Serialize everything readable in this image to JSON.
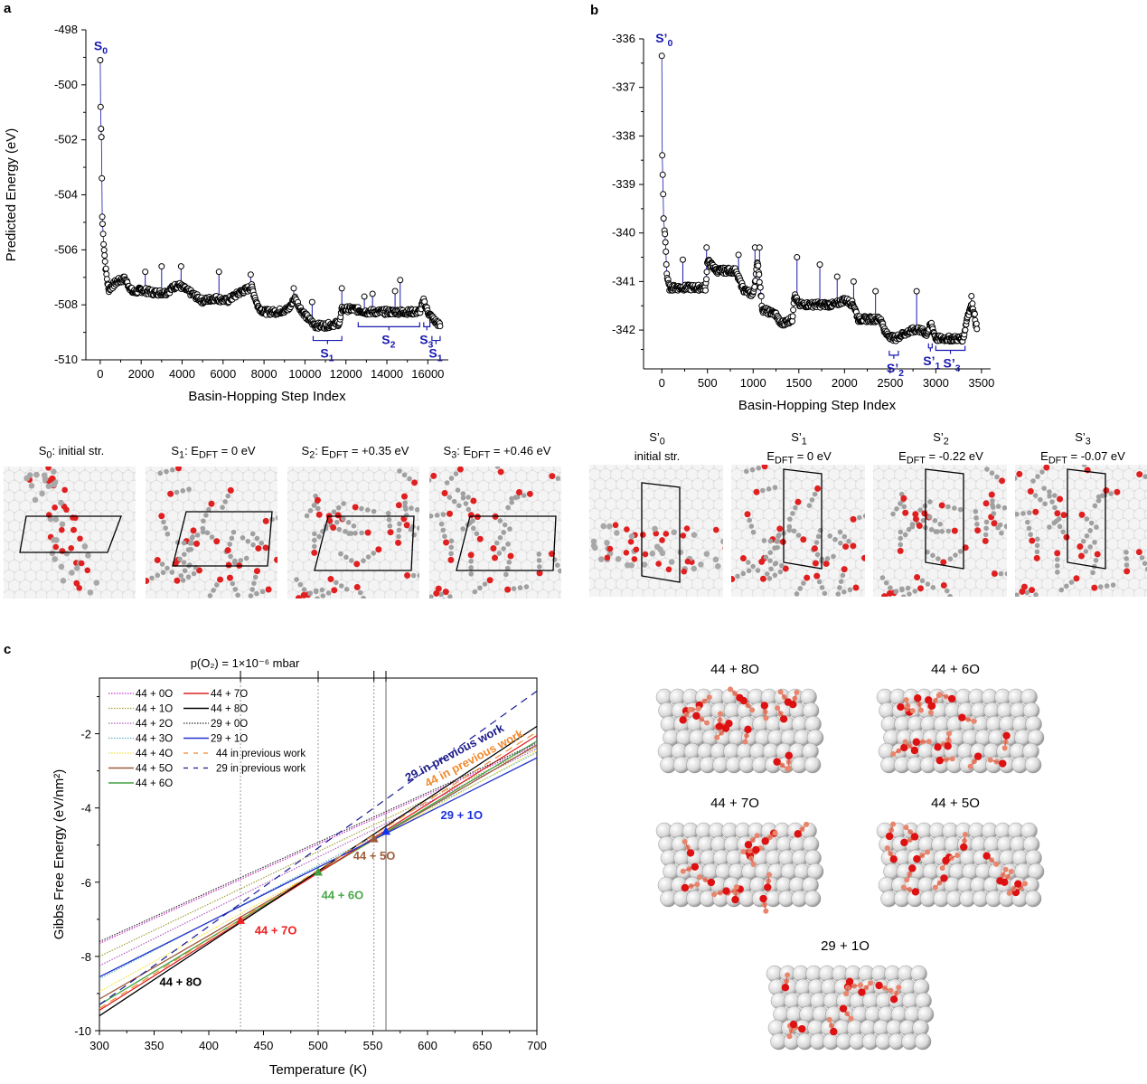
{
  "panels": {
    "a": "a",
    "b": "b",
    "c": "c"
  },
  "chart_data": [
    {
      "id": "a",
      "type": "scatter",
      "title": "",
      "xlabel": "Basin-Hopping Step Index",
      "ylabel": "Predicted Energy (eV)",
      "xlim": [
        -700,
        17000
      ],
      "ylim": [
        -510,
        -498
      ],
      "xticks": [
        0,
        2000,
        4000,
        6000,
        8000,
        10000,
        12000,
        14000,
        16000
      ],
      "yticks": [
        -510,
        -508,
        -506,
        -504,
        -502,
        -500,
        -498
      ],
      "marker_color": "#000000",
      "line_color": "#1a1aaa",
      "series_profile": [
        [
          0,
          -499.1
        ],
        [
          20,
          -500.8
        ],
        [
          40,
          -501.6
        ],
        [
          60,
          -501.9
        ],
        [
          80,
          -503.4
        ],
        [
          100,
          -504.8
        ],
        [
          150,
          -505.6
        ],
        [
          250,
          -506.6
        ],
        [
          400,
          -507.5
        ],
        [
          800,
          -507.2
        ],
        [
          1200,
          -507.1
        ],
        [
          1600,
          -507.6
        ],
        [
          2000,
          -507.5
        ],
        [
          2600,
          -507.6
        ],
        [
          3200,
          -507.6
        ],
        [
          3800,
          -507.3
        ],
        [
          4400,
          -507.6
        ],
        [
          5000,
          -507.9
        ],
        [
          5600,
          -507.8
        ],
        [
          6200,
          -507.9
        ],
        [
          6800,
          -507.6
        ],
        [
          7400,
          -507.4
        ],
        [
          7700,
          -508.1
        ],
        [
          8000,
          -508.3
        ],
        [
          8600,
          -508.3
        ],
        [
          9200,
          -508.2
        ],
        [
          9500,
          -507.8
        ],
        [
          9800,
          -508.2
        ],
        [
          10100,
          -508.5
        ],
        [
          10500,
          -508.8
        ],
        [
          11000,
          -508.8
        ],
        [
          11700,
          -508.7
        ],
        [
          11800,
          -508.2
        ],
        [
          12400,
          -508.2
        ],
        [
          13000,
          -508.3
        ],
        [
          14000,
          -508.3
        ],
        [
          15000,
          -508.3
        ],
        [
          15600,
          -508.3
        ],
        [
          15800,
          -507.9
        ],
        [
          16000,
          -508.3
        ],
        [
          16300,
          -508.6
        ],
        [
          16600,
          -508.8
        ]
      ],
      "spikes": [
        [
          2200,
          -506.8
        ],
        [
          3000,
          -506.6
        ],
        [
          3950,
          -506.6
        ],
        [
          5800,
          -506.8
        ],
        [
          7350,
          -506.9
        ],
        [
          9450,
          -507.4
        ],
        [
          10350,
          -507.9
        ],
        [
          11800,
          -507.4
        ],
        [
          12900,
          -507.7
        ],
        [
          13300,
          -507.6
        ],
        [
          14400,
          -507.5
        ],
        [
          14650,
          -507.1
        ]
      ],
      "annotations": [
        {
          "label": "S",
          "sub": "0",
          "x": 0,
          "y": -498.6,
          "type": "label"
        },
        {
          "label": "S",
          "sub": "1",
          "x_range": [
            10400,
            11800
          ],
          "y": -509.0,
          "type": "bracket"
        },
        {
          "label": "S",
          "sub": "2",
          "x_range": [
            12600,
            15600
          ],
          "y": -508.5,
          "type": "bracket"
        },
        {
          "label": "S",
          "sub": "3",
          "x_range": [
            15800,
            16100
          ],
          "y": -508.5,
          "type": "bracket"
        },
        {
          "label": "S",
          "sub": "1",
          "x_range": [
            16200,
            16600
          ],
          "y": -509.0,
          "type": "bracket"
        }
      ]
    },
    {
      "id": "b",
      "type": "scatter",
      "title": "",
      "xlabel": "Basin-Hopping Step Index",
      "ylabel": "Predicted Energy (eV)",
      "xlim": [
        -200,
        3600
      ],
      "ylim": [
        -342.8,
        -336
      ],
      "xticks": [
        0,
        500,
        1000,
        1500,
        2000,
        2500,
        3000,
        3500
      ],
      "yticks": [
        -342,
        -341,
        -340,
        -339,
        -338,
        -337,
        -336
      ],
      "marker_color": "#000000",
      "line_color": "#1a1aaa",
      "series_profile": [
        [
          0,
          -336.35
        ],
        [
          5,
          -338.4
        ],
        [
          10,
          -338.8
        ],
        [
          15,
          -339.2
        ],
        [
          20,
          -339.7
        ],
        [
          30,
          -339.95
        ],
        [
          40,
          -340.2
        ],
        [
          55,
          -340.9
        ],
        [
          80,
          -341.15
        ],
        [
          200,
          -341.15
        ],
        [
          480,
          -341.15
        ],
        [
          500,
          -340.6
        ],
        [
          600,
          -340.8
        ],
        [
          800,
          -340.8
        ],
        [
          900,
          -341.2
        ],
        [
          1000,
          -341.3
        ],
        [
          1050,
          -340.6
        ],
        [
          1100,
          -341.6
        ],
        [
          1250,
          -341.7
        ],
        [
          1300,
          -341.9
        ],
        [
          1430,
          -341.8
        ],
        [
          1450,
          -341.3
        ],
        [
          1500,
          -341.5
        ],
        [
          1700,
          -341.5
        ],
        [
          1900,
          -341.5
        ],
        [
          2000,
          -341.4
        ],
        [
          2100,
          -341.5
        ],
        [
          2150,
          -341.8
        ],
        [
          2300,
          -341.8
        ],
        [
          2400,
          -341.8
        ],
        [
          2450,
          -342.1
        ],
        [
          2550,
          -342.2
        ],
        [
          2650,
          -342.1
        ],
        [
          2800,
          -342.0
        ],
        [
          2900,
          -342.1
        ],
        [
          2950,
          -341.9
        ],
        [
          3000,
          -342.2
        ],
        [
          3300,
          -342.2
        ],
        [
          3350,
          -341.7
        ],
        [
          3400,
          -341.5
        ],
        [
          3450,
          -342.0
        ]
      ],
      "spikes": [
        [
          230,
          -340.55
        ],
        [
          490,
          -340.3
        ],
        [
          840,
          -340.45
        ],
        [
          1020,
          -340.3
        ],
        [
          1070,
          -340.3
        ],
        [
          1480,
          -340.5
        ],
        [
          1730,
          -340.65
        ],
        [
          1920,
          -340.9
        ],
        [
          2100,
          -341.0
        ],
        [
          2340,
          -341.2
        ],
        [
          2790,
          -341.2
        ],
        [
          3390,
          -341.3
        ]
      ],
      "annotations": [
        {
          "label": "S’",
          "sub": "0",
          "x": 0,
          "y": -336.0,
          "type": "label"
        },
        {
          "label": "S’",
          "sub": "2",
          "x_range": [
            2490,
            2590
          ],
          "y": -342.35,
          "type": "bracket"
        },
        {
          "label": "S’",
          "sub": "1",
          "x_range": [
            2920,
            2960
          ],
          "y": -342.2,
          "type": "bracket"
        },
        {
          "label": "S’",
          "sub": "3",
          "x_range": [
            3000,
            3320
          ],
          "y": -342.25,
          "type": "bracket"
        }
      ]
    },
    {
      "id": "c",
      "type": "line",
      "title": "p(O₂) = 1×10⁻⁶ mbar",
      "xlabel": "Temperature (K)",
      "ylabel": "Gibbs Free Energy (eV/nm²)",
      "xlim": [
        300,
        700
      ],
      "ylim": [
        -10,
        -0.5
      ],
      "xticks": [
        300,
        350,
        400,
        450,
        500,
        550,
        600,
        650,
        700
      ],
      "yticks": [
        -10,
        -8,
        -6,
        -4,
        -2
      ],
      "vlines": [
        {
          "x": 429,
          "style": "dotted"
        },
        {
          "x": 500,
          "style": "dotted"
        },
        {
          "x": 551,
          "style": "dotted"
        },
        {
          "x": 562,
          "style": "solid"
        }
      ],
      "legend_position": "top-left",
      "series": [
        {
          "name": "44 + 0O",
          "color": "#cc33cc",
          "style": "dotted",
          "x": [
            300,
            700
          ],
          "y": [
            -7.65,
            -2.3
          ]
        },
        {
          "name": "44 + 1O",
          "color": "#a0a040",
          "style": "dotted",
          "x": [
            300,
            700
          ],
          "y": [
            -8.0,
            -2.35
          ]
        },
        {
          "name": "44 + 2O",
          "color": "#b060c0",
          "style": "dotted",
          "x": [
            300,
            700
          ],
          "y": [
            -8.25,
            -2.4
          ]
        },
        {
          "name": "44 + 3O",
          "color": "#60b0c0",
          "style": "dotted",
          "x": [
            300,
            700
          ],
          "y": [
            -8.6,
            -2.5
          ]
        },
        {
          "name": "44 + 4O",
          "color": "#f0e040",
          "style": "dotted",
          "x": [
            300,
            700
          ],
          "y": [
            -8.95,
            -2.45
          ]
        },
        {
          "name": "44 + 5O",
          "color": "#9c5a3c",
          "style": "solid",
          "x": [
            300,
            700
          ],
          "y": [
            -9.15,
            -2.3
          ]
        },
        {
          "name": "44 + 6O",
          "color": "#40a040",
          "style": "solid",
          "x": [
            300,
            700
          ],
          "y": [
            -9.3,
            -2.2
          ]
        },
        {
          "name": "44 + 7O",
          "color": "#dd2222",
          "style": "solid",
          "x": [
            300,
            700
          ],
          "y": [
            -9.45,
            -2.05
          ]
        },
        {
          "name": "44 + 8O",
          "color": "#000000",
          "style": "solid",
          "x": [
            300,
            700
          ],
          "y": [
            -9.6,
            -1.8
          ]
        },
        {
          "name": "29 + 0O",
          "color": "#333333",
          "style": "dotted",
          "x": [
            300,
            700
          ],
          "y": [
            -7.6,
            -2.25
          ]
        },
        {
          "name": "29 + 1O",
          "color": "#2233cc",
          "style": "solid",
          "x": [
            300,
            700
          ],
          "y": [
            -8.55,
            -2.65
          ]
        },
        {
          "name": "44 in previous work",
          "color": "#f08a30",
          "style": "dashed",
          "x": [
            300,
            700
          ],
          "y": [
            -9.4,
            -1.95
          ]
        },
        {
          "name": "29 in previous work",
          "color": "#1a1a99",
          "style": "dashed",
          "x": [
            300,
            700
          ],
          "y": [
            -9.3,
            -0.85
          ]
        }
      ],
      "markers": [
        {
          "x": 429,
          "y": -7.05,
          "color": "#ee2222"
        },
        {
          "x": 500,
          "y": -5.75,
          "color": "#40a040"
        },
        {
          "x": 551,
          "y": -4.85,
          "color": "#9c5a3c"
        },
        {
          "x": 562,
          "y": -4.65,
          "color": "#1133ee"
        }
      ],
      "annotations": [
        {
          "text": "44 + 8O",
          "x": 355,
          "y": -8.8,
          "color": "#000000"
        },
        {
          "text": "44 + 7O",
          "x": 442,
          "y": -7.4,
          "color": "#ee2222"
        },
        {
          "text": "44 + 6O",
          "x": 503,
          "y": -6.45,
          "color": "#4aa84a"
        },
        {
          "text": "44 + 5O",
          "x": 532,
          "y": -5.4,
          "color": "#a0603c"
        },
        {
          "text": "29 + 1O",
          "x": 612,
          "y": -4.3,
          "color": "#1a33dd"
        },
        {
          "text": "29 in previous work",
          "x": 582,
          "y": -3.3,
          "color": "#1a1a88",
          "rotate": -28
        },
        {
          "text": "44 in previous work",
          "x": 600,
          "y": -3.45,
          "color": "#f08a30",
          "rotate": -28
        }
      ]
    }
  ],
  "structures_a": [
    {
      "name": "S",
      "sub": "0",
      "desc": ": initial str."
    },
    {
      "name": "S",
      "sub": "1",
      "desc": ": E",
      "esub": "DFT",
      "val": " = 0 eV"
    },
    {
      "name": "S",
      "sub": "2",
      "desc": ": E",
      "esub": "DFT",
      "val": " = +0.35 eV"
    },
    {
      "name": "S",
      "sub": "3",
      "desc": ": E",
      "esub": "DFT",
      "val": " = +0.46 eV"
    }
  ],
  "structures_b": [
    {
      "name": "S’",
      "sub": "0",
      "line2": "initial str."
    },
    {
      "name": "S’",
      "sub": "1",
      "e": "E",
      "esub": "DFT",
      "val": " = 0 eV"
    },
    {
      "name": "S’",
      "sub": "2",
      "e": "E",
      "esub": "DFT",
      "val": " = -0.22 eV"
    },
    {
      "name": "S’",
      "sub": "3",
      "e": "E",
      "esub": "DFT",
      "val": " = -0.07 eV"
    }
  ],
  "molecules_c": [
    {
      "label": "44 + 8O"
    },
    {
      "label": "44 + 6O"
    },
    {
      "label": "44 + 7O"
    },
    {
      "label": "44 + 5O"
    },
    {
      "label": "29 + 1O"
    }
  ],
  "colors": {
    "oxygen": "#dd1111",
    "carbon_a": "#a0a0a0",
    "carbon_c": "#e8856c",
    "substrate": "#e6e6e6"
  }
}
